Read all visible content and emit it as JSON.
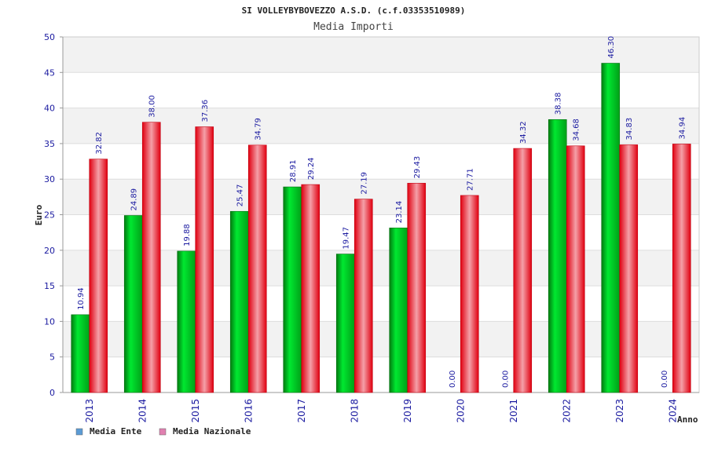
{
  "chart_data": {
    "type": "bar",
    "title": "SI VOLLEYBYBOVEZZO A.S.D. (c.f.03353510989)",
    "subtitle": "Media Importi",
    "xlabel": "Anno",
    "ylabel": "Euro",
    "ylim": [
      0,
      50
    ],
    "yticks": [
      0,
      5,
      10,
      15,
      20,
      25,
      30,
      35,
      40,
      45,
      50
    ],
    "grid": true,
    "legend_position": "bottom-left",
    "categories": [
      "2013",
      "2014",
      "2015",
      "2016",
      "2017",
      "2018",
      "2019",
      "2020",
      "2021",
      "2022",
      "2023",
      "2024"
    ],
    "series": [
      {
        "name": "Media Ente",
        "legend_color": "#5b9bd5",
        "bar_color": "#00b020",
        "values": [
          10.94,
          24.89,
          19.88,
          25.47,
          28.91,
          19.47,
          23.14,
          0.0,
          0.0,
          38.38,
          46.3,
          0.0
        ],
        "labels": [
          "10.94",
          "24.89",
          "19.88",
          "25.47",
          "28.91",
          "19.47",
          "23.14",
          "0.00",
          "0.00",
          "38.38",
          "46.30",
          "0.00"
        ]
      },
      {
        "name": "Media Nazionale",
        "legend_color": "#e080b0",
        "bar_color": "#e8101c",
        "values": [
          32.82,
          38.0,
          37.36,
          34.79,
          29.24,
          27.19,
          29.43,
          27.71,
          34.32,
          34.68,
          34.83,
          34.94
        ],
        "labels": [
          "32.82",
          "38.00",
          "37.36",
          "34.79",
          "29.24",
          "27.19",
          "29.43",
          "27.71",
          "34.32",
          "34.68",
          "34.83",
          "34.94"
        ]
      }
    ]
  }
}
